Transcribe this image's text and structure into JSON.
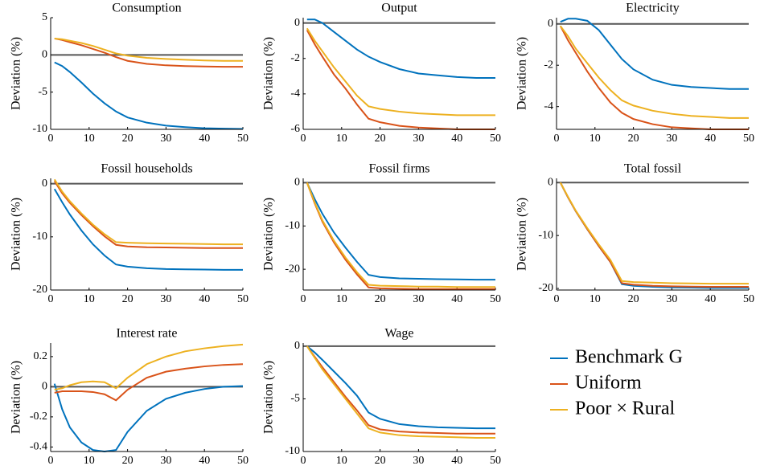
{
  "chart_data": [
    {
      "type": "line",
      "title": "Consumption",
      "y_label": "Deviation (%)",
      "x": [
        1,
        3,
        5,
        8,
        11,
        14,
        17,
        20,
        25,
        30,
        35,
        40,
        45,
        50
      ],
      "xlim": [
        0,
        50
      ],
      "xticks": [
        0,
        10,
        20,
        30,
        40,
        50
      ],
      "ylim": [
        -10,
        5
      ],
      "yticks": [
        -10,
        -5,
        0,
        5
      ],
      "series": [
        {
          "values": [
            -1,
            -1.5,
            -2.3,
            -3.7,
            -5.2,
            -6.5,
            -7.6,
            -8.4,
            -9.1,
            -9.5,
            -9.7,
            -9.85,
            -9.9,
            -9.95
          ]
        },
        {
          "values": [
            2.2,
            2.0,
            1.7,
            1.3,
            0.8,
            0.3,
            -0.3,
            -0.8,
            -1.2,
            -1.4,
            -1.5,
            -1.55,
            -1.6,
            -1.6
          ]
        },
        {
          "values": [
            2.2,
            2.1,
            1.9,
            1.6,
            1.2,
            0.7,
            0.2,
            -0.1,
            -0.4,
            -0.55,
            -0.65,
            -0.75,
            -0.8,
            -0.8
          ]
        }
      ]
    },
    {
      "type": "line",
      "title": "Output",
      "y_label": "Deviation (%)",
      "x": [
        1,
        3,
        5,
        8,
        11,
        14,
        17,
        20,
        25,
        30,
        35,
        40,
        45,
        50
      ],
      "xlim": [
        0,
        50
      ],
      "xticks": [
        0,
        10,
        20,
        30,
        40,
        50
      ],
      "ylim": [
        -6,
        0.3
      ],
      "yticks": [
        -6,
        -4,
        -2,
        0
      ],
      "series": [
        {
          "values": [
            0.2,
            0.2,
            0,
            -0.5,
            -1,
            -1.5,
            -1.9,
            -2.2,
            -2.6,
            -2.85,
            -2.95,
            -3.05,
            -3.1,
            -3.1
          ]
        },
        {
          "values": [
            -0.4,
            -1.2,
            -1.9,
            -2.9,
            -3.7,
            -4.6,
            -5.4,
            -5.6,
            -5.8,
            -5.9,
            -5.95,
            -6,
            -6,
            -6
          ]
        },
        {
          "values": [
            -0.3,
            -1,
            -1.6,
            -2.5,
            -3.3,
            -4.1,
            -4.7,
            -4.85,
            -5,
            -5.1,
            -5.15,
            -5.2,
            -5.2,
            -5.2
          ]
        }
      ]
    },
    {
      "type": "line",
      "title": "Electricity",
      "y_label": "Deviation (%)",
      "x": [
        1,
        3,
        5,
        8,
        11,
        14,
        17,
        20,
        25,
        30,
        35,
        40,
        45,
        50
      ],
      "xlim": [
        0,
        50
      ],
      "xticks": [
        0,
        10,
        20,
        30,
        40,
        50
      ],
      "ylim": [
        -5.1,
        0.3
      ],
      "yticks": [
        -4,
        -2,
        0
      ],
      "series": [
        {
          "values": [
            0.1,
            0.25,
            0.25,
            0.15,
            -0.3,
            -1,
            -1.7,
            -2.2,
            -2.7,
            -2.95,
            -3.05,
            -3.1,
            -3.15,
            -3.15
          ]
        },
        {
          "values": [
            -0.1,
            -0.8,
            -1.4,
            -2.3,
            -3.1,
            -3.8,
            -4.3,
            -4.6,
            -4.85,
            -5,
            -5.05,
            -5.1,
            -5.1,
            -5.1
          ]
        },
        {
          "values": [
            -0.1,
            -0.6,
            -1.2,
            -1.9,
            -2.6,
            -3.2,
            -3.7,
            -3.95,
            -4.2,
            -4.35,
            -4.45,
            -4.5,
            -4.55,
            -4.55
          ]
        }
      ]
    },
    {
      "type": "line",
      "title": "Fossil households",
      "y_label": "Deviation (%)",
      "x": [
        1,
        3,
        5,
        8,
        11,
        14,
        17,
        20,
        25,
        30,
        35,
        40,
        45,
        50
      ],
      "xlim": [
        0,
        50
      ],
      "xticks": [
        0,
        10,
        20,
        30,
        40,
        50
      ],
      "ylim": [
        -20,
        1
      ],
      "yticks": [
        -20,
        -10,
        0
      ],
      "series": [
        {
          "values": [
            -1,
            -3.5,
            -5.8,
            -8.8,
            -11.4,
            -13.5,
            -15.2,
            -15.6,
            -15.9,
            -16.05,
            -16.1,
            -16.15,
            -16.2,
            -16.2
          ]
        },
        {
          "values": [
            0.5,
            -1.8,
            -3.6,
            -5.9,
            -8,
            -9.9,
            -11.5,
            -11.8,
            -11.95,
            -12,
            -12.05,
            -12.1,
            -12.1,
            -12.1
          ]
        },
        {
          "values": [
            0.8,
            -1.5,
            -3.3,
            -5.6,
            -7.7,
            -9.5,
            -11,
            -11.1,
            -11.2,
            -11.25,
            -11.3,
            -11.35,
            -11.4,
            -11.4
          ]
        }
      ]
    },
    {
      "type": "line",
      "title": "Fossil firms",
      "y_label": "Deviation (%)",
      "x": [
        1,
        3,
        5,
        8,
        11,
        14,
        17,
        20,
        25,
        30,
        35,
        40,
        45,
        50
      ],
      "xlim": [
        0,
        50
      ],
      "xticks": [
        0,
        10,
        20,
        30,
        40,
        50
      ],
      "ylim": [
        -24.8,
        1
      ],
      "yticks": [
        -20,
        -10,
        0
      ],
      "series": [
        {
          "values": [
            0,
            -3.8,
            -7.2,
            -11.5,
            -15,
            -18.3,
            -21.3,
            -21.8,
            -22.1,
            -22.2,
            -22.3,
            -22.35,
            -22.4,
            -22.4
          ]
        },
        {
          "values": [
            0,
            -4.8,
            -9,
            -13.8,
            -17.8,
            -21.2,
            -24.2,
            -24.4,
            -24.5,
            -24.6,
            -24.6,
            -24.6,
            -24.6,
            -24.6
          ]
        },
        {
          "values": [
            0,
            -4.6,
            -8.7,
            -13.4,
            -17.3,
            -20.7,
            -23.6,
            -23.8,
            -23.9,
            -24,
            -24,
            -24.1,
            -24.1,
            -24.1
          ]
        }
      ]
    },
    {
      "type": "line",
      "title": "Total fossil",
      "y_label": "Deviation (%)",
      "x": [
        1,
        3,
        5,
        8,
        11,
        14,
        17,
        20,
        25,
        30,
        35,
        40,
        45,
        50
      ],
      "xlim": [
        0,
        50
      ],
      "xticks": [
        0,
        10,
        20,
        30,
        40,
        50
      ],
      "ylim": [
        -20.3,
        0.8
      ],
      "yticks": [
        -20,
        -10,
        0
      ],
      "series": [
        {
          "values": [
            0,
            -2.8,
            -5.4,
            -8.8,
            -12,
            -15,
            -19.2,
            -19.5,
            -19.7,
            -19.8,
            -19.85,
            -19.9,
            -19.9,
            -19.9
          ]
        },
        {
          "values": [
            0,
            -2.8,
            -5.4,
            -8.8,
            -12,
            -15,
            -19,
            -19.3,
            -19.5,
            -19.6,
            -19.65,
            -19.7,
            -19.7,
            -19.7
          ]
        },
        {
          "values": [
            0,
            -2.7,
            -5.3,
            -8.6,
            -11.7,
            -14.6,
            -18.6,
            -18.8,
            -18.9,
            -19,
            -19.05,
            -19.1,
            -19.1,
            -19.1
          ]
        }
      ]
    },
    {
      "type": "line",
      "title": "Interest rate",
      "y_label": "Deviation (%)",
      "x": [
        1,
        3,
        5,
        8,
        11,
        14,
        17,
        20,
        25,
        30,
        35,
        40,
        45,
        50
      ],
      "xlim": [
        0,
        50
      ],
      "xticks": [
        0,
        10,
        20,
        30,
        40,
        50
      ],
      "ylim": [
        -0.43,
        0.29
      ],
      "yticks": [
        -0.4,
        -0.2,
        0,
        0.2
      ],
      "series": [
        {
          "values": [
            0.02,
            -0.15,
            -0.27,
            -0.37,
            -0.42,
            -0.43,
            -0.42,
            -0.3,
            -0.16,
            -0.08,
            -0.04,
            -0.015,
            0,
            0.005
          ]
        },
        {
          "values": [
            -0.04,
            -0.03,
            -0.03,
            -0.03,
            -0.035,
            -0.05,
            -0.09,
            -0.02,
            0.06,
            0.1,
            0.12,
            0.135,
            0.145,
            0.15
          ]
        },
        {
          "values": [
            -0.02,
            -0.01,
            0.01,
            0.03,
            0.035,
            0.03,
            -0.01,
            0.06,
            0.15,
            0.2,
            0.235,
            0.255,
            0.27,
            0.28
          ]
        }
      ]
    },
    {
      "type": "line",
      "title": "Wage",
      "y_label": "Deviation (%)",
      "x": [
        1,
        3,
        5,
        8,
        11,
        14,
        17,
        20,
        25,
        30,
        35,
        40,
        45,
        50
      ],
      "xlim": [
        0,
        50
      ],
      "xticks": [
        0,
        10,
        20,
        30,
        40,
        50
      ],
      "ylim": [
        -10,
        0.3
      ],
      "yticks": [
        -10,
        -5,
        0
      ],
      "series": [
        {
          "values": [
            0,
            -0.6,
            -1.3,
            -2.4,
            -3.5,
            -4.7,
            -6.3,
            -6.9,
            -7.4,
            -7.6,
            -7.7,
            -7.75,
            -7.8,
            -7.8
          ]
        },
        {
          "values": [
            0,
            -1,
            -2,
            -3.4,
            -4.8,
            -6.1,
            -7.5,
            -7.9,
            -8.1,
            -8.2,
            -8.25,
            -8.3,
            -8.3,
            -8.3
          ]
        },
        {
          "values": [
            0,
            -1.1,
            -2.2,
            -3.6,
            -5,
            -6.4,
            -7.8,
            -8.2,
            -8.45,
            -8.55,
            -8.6,
            -8.65,
            -8.7,
            -8.7
          ]
        }
      ]
    }
  ],
  "legend": {
    "series": [
      {
        "name": "Benchmark G",
        "color": "#0072bd"
      },
      {
        "name": "Uniform",
        "color": "#d95319"
      },
      {
        "name": "Poor × Rural",
        "color": "#edb120"
      }
    ]
  }
}
